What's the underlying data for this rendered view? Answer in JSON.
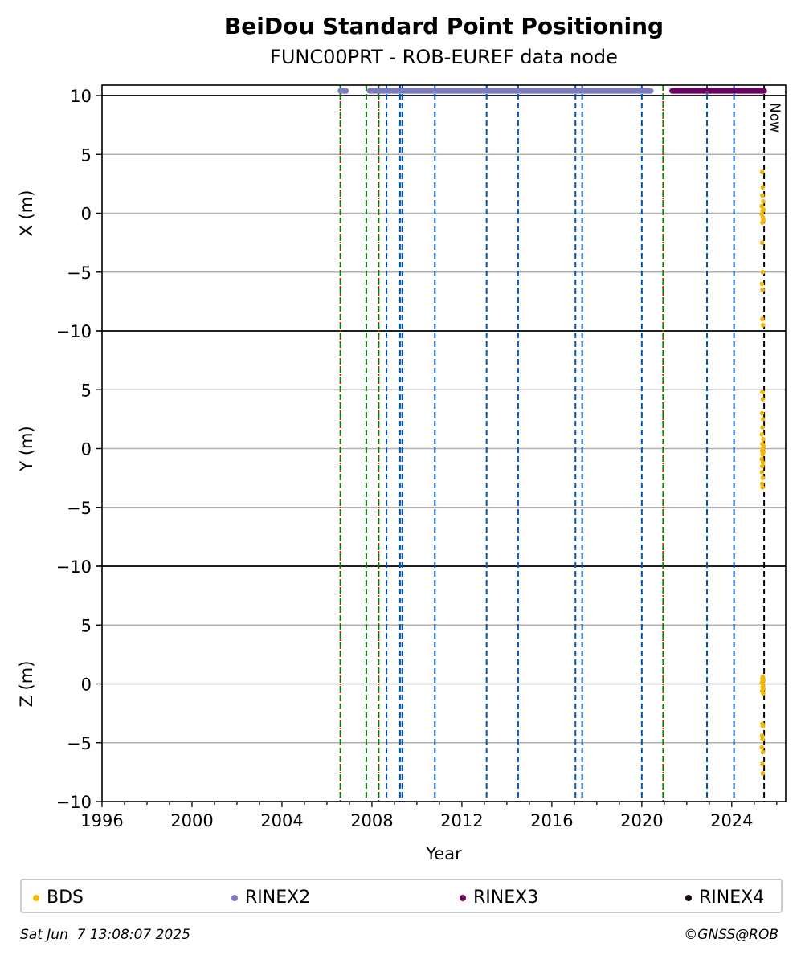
{
  "chart_data": {
    "type": "scatter",
    "title": "BeiDou Standard Point Positioning",
    "subtitle": "FUNC00PRT - ROB-EUREF data node",
    "xlabel": "Year",
    "xlim": [
      1996,
      2026.4
    ],
    "x_ticks": [
      1996,
      2000,
      2004,
      2008,
      2012,
      2016,
      2020,
      2024
    ],
    "grid": "horizontal",
    "legend_position": "bottom",
    "now_label": "Now",
    "now_year": 2025.44,
    "panels": [
      {
        "ylabel": "X (m)",
        "ylim": [
          -10,
          10
        ],
        "y_ticks": [
          -10,
          -5,
          0,
          5,
          10
        ],
        "y_tick_labels": [
          "−10",
          "−5",
          "0",
          "5",
          "10"
        ],
        "bds_points": [
          [
            2025.35,
            3.5
          ],
          [
            2025.38,
            2.2
          ],
          [
            2025.36,
            1.5
          ],
          [
            2025.4,
            1.0
          ],
          [
            2025.33,
            0.6
          ],
          [
            2025.37,
            0.2
          ],
          [
            2025.42,
            0.3
          ],
          [
            2025.34,
            -0.1
          ],
          [
            2025.39,
            -0.4
          ],
          [
            2025.41,
            -0.6
          ],
          [
            2025.36,
            -0.8
          ],
          [
            2025.35,
            -2.5
          ],
          [
            2025.38,
            -5.0
          ],
          [
            2025.34,
            -6.0
          ],
          [
            2025.37,
            -6.5
          ],
          [
            2025.36,
            -9.0
          ],
          [
            2025.39,
            -9.5
          ]
        ]
      },
      {
        "ylabel": "Y (m)",
        "ylim": [
          -10,
          10
        ],
        "y_ticks": [
          -10,
          -5,
          0,
          5,
          10
        ],
        "y_tick_labels": [
          "−10",
          "−5",
          "0",
          "5",
          "10"
        ],
        "bds_points": [
          [
            2025.36,
            4.8
          ],
          [
            2025.38,
            4.2
          ],
          [
            2025.35,
            3.0
          ],
          [
            2025.39,
            2.5
          ],
          [
            2025.37,
            1.8
          ],
          [
            2025.34,
            1.2
          ],
          [
            2025.4,
            0.8
          ],
          [
            2025.36,
            0.4
          ],
          [
            2025.42,
            0.2
          ],
          [
            2025.38,
            0.0
          ],
          [
            2025.35,
            -0.2
          ],
          [
            2025.41,
            -0.3
          ],
          [
            2025.37,
            -0.5
          ],
          [
            2025.33,
            -0.9
          ],
          [
            2025.39,
            -1.2
          ],
          [
            2025.36,
            -1.5
          ],
          [
            2025.34,
            -2.0
          ],
          [
            2025.38,
            -2.5
          ],
          [
            2025.35,
            -3.0
          ],
          [
            2025.37,
            -3.3
          ]
        ]
      },
      {
        "ylabel": "Z (m)",
        "ylim": [
          -10,
          10
        ],
        "y_ticks": [
          -10,
          -5,
          0,
          5,
          10
        ],
        "y_tick_labels": [
          "−10",
          "−5",
          "0",
          "5",
          "10"
        ],
        "bds_points": [
          [
            2025.38,
            0.6
          ],
          [
            2025.36,
            0.4
          ],
          [
            2025.41,
            0.3
          ],
          [
            2025.34,
            0.1
          ],
          [
            2025.39,
            -0.1
          ],
          [
            2025.37,
            -0.3
          ],
          [
            2025.42,
            -0.4
          ],
          [
            2025.35,
            -0.6
          ],
          [
            2025.4,
            -0.8
          ],
          [
            2025.36,
            -3.4
          ],
          [
            2025.38,
            -3.6
          ],
          [
            2025.35,
            -4.4
          ],
          [
            2025.37,
            -4.7
          ],
          [
            2025.34,
            -5.4
          ],
          [
            2025.39,
            -5.8
          ],
          [
            2025.36,
            -6.8
          ],
          [
            2025.38,
            -7.6
          ]
        ]
      }
    ],
    "availability": {
      "y_value": 10.4,
      "rinex2_ranges": [
        [
          2006.6,
          2006.85
        ],
        [
          2007.9,
          2020.4
        ]
      ],
      "rinex3_ranges": [
        [
          2021.35,
          2025.44
        ]
      ]
    },
    "event_lines": [
      {
        "year": 2006.6,
        "kind": "red"
      },
      {
        "year": 2006.6,
        "kind": "green"
      },
      {
        "year": 2007.75,
        "kind": "green"
      },
      {
        "year": 2008.3,
        "kind": "red"
      },
      {
        "year": 2008.3,
        "kind": "green"
      },
      {
        "year": 2008.65,
        "kind": "blue"
      },
      {
        "year": 2009.25,
        "kind": "blue"
      },
      {
        "year": 2009.35,
        "kind": "blue"
      },
      {
        "year": 2010.8,
        "kind": "blue"
      },
      {
        "year": 2013.1,
        "kind": "blue"
      },
      {
        "year": 2014.5,
        "kind": "blue"
      },
      {
        "year": 2017.05,
        "kind": "blue"
      },
      {
        "year": 2017.35,
        "kind": "blue"
      },
      {
        "year": 2020.0,
        "kind": "blue"
      },
      {
        "year": 2020.95,
        "kind": "red"
      },
      {
        "year": 2020.95,
        "kind": "green"
      },
      {
        "year": 2022.9,
        "kind": "blue"
      },
      {
        "year": 2024.1,
        "kind": "blue"
      }
    ],
    "series": [
      {
        "name": "BDS",
        "color": "#f2b705"
      },
      {
        "name": "RINEX2",
        "color": "#7b7bbf"
      },
      {
        "name": "RINEX3",
        "color": "#6a0062"
      },
      {
        "name": "RINEX4",
        "color": "#1a0515"
      }
    ],
    "colors": {
      "red_line": "#ff0000",
      "green_line": "#008000",
      "blue_line": "#0057b8",
      "now_line": "#000000",
      "grid": "#b0b0b0"
    }
  },
  "legend": {
    "items": [
      {
        "label": "BDS",
        "color": "#f2b705"
      },
      {
        "label": "RINEX2",
        "color": "#7b7bbf"
      },
      {
        "label": "RINEX3",
        "color": "#6a0062"
      },
      {
        "label": "RINEX4",
        "color": "#1a0515"
      }
    ]
  },
  "footer": {
    "timestamp": "Sat Jun  7 13:08:07 2025",
    "copyright": "©GNSS@ROB"
  }
}
